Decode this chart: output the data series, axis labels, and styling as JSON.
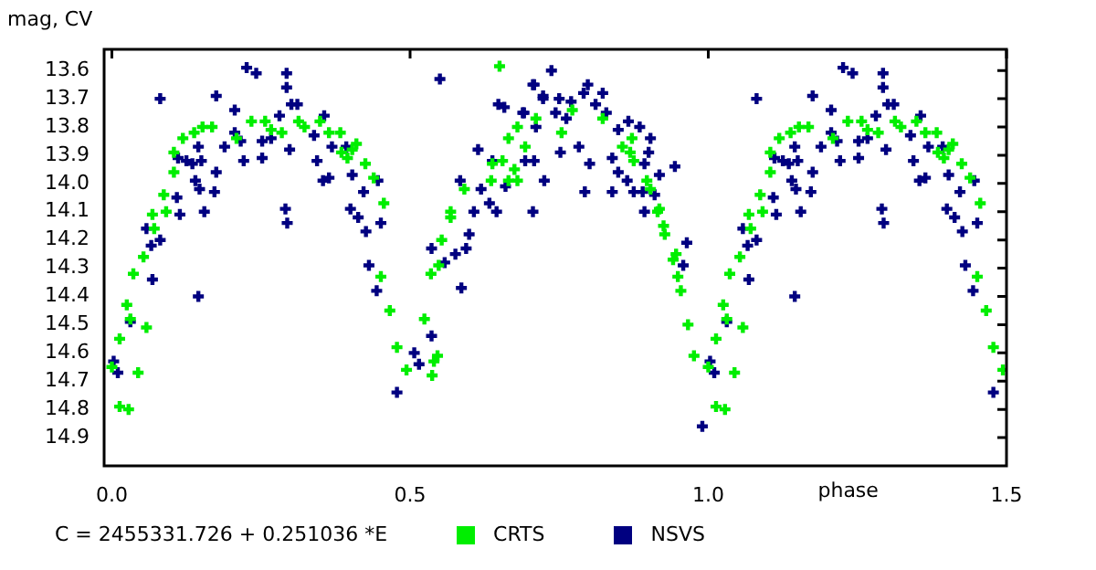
{
  "chart_data": {
    "type": "scatter",
    "xlabel": "phase",
    "ylabel": "mag, CV",
    "annotations": [
      "C = 2455331.726 + 0.251036 *E"
    ],
    "xlim": [
      -0.013,
      1.5
    ],
    "xticks": [
      {
        "value": 0,
        "label": "0.0"
      },
      0.5,
      {
        "value": 1,
        "label": "1.0"
      },
      1.5
    ],
    "ylim": [
      15.0,
      13.525
    ],
    "yticks": [
      13.6,
      13.7,
      13.8,
      13.9,
      {
        "value": 14,
        "label": "14.0"
      },
      14.1,
      14.2,
      14.3,
      14.4,
      14.5,
      14.6,
      14.7,
      14.8,
      14.9
    ],
    "grid": false,
    "legend": "bottom",
    "marker": "cross",
    "series": [
      {
        "name": "CRTS",
        "color": "#00ee00",
        "x": [
          0.0,
          0.013,
          0.013,
          0.025,
          0.028,
          0.031,
          0.036,
          0.044,
          0.053,
          0.058,
          0.068,
          0.071,
          0.087,
          0.091,
          0.104,
          0.104,
          0.119,
          0.138,
          0.152,
          0.168,
          0.209,
          0.234,
          0.257,
          0.267,
          0.285,
          0.313,
          0.323,
          0.349,
          0.364,
          0.383,
          0.385,
          0.395,
          0.403,
          0.41,
          0.425,
          0.439,
          0.451,
          0.456,
          0.466,
          0.478,
          0.494,
          1.0,
          1.013,
          1.013,
          1.025,
          1.028,
          1.031,
          1.036,
          1.044,
          1.053,
          1.058,
          1.068,
          1.071,
          1.087,
          1.091,
          1.104,
          1.104,
          1.119,
          1.138,
          1.152,
          1.168,
          1.209,
          1.234,
          1.257,
          1.267,
          1.285,
          1.313,
          1.323,
          1.349,
          1.364,
          1.383,
          1.385,
          1.395,
          1.403,
          1.41,
          1.425,
          1.439,
          1.451,
          1.456,
          1.466,
          1.478,
          1.494,
          0.524,
          0.535,
          0.537,
          0.54,
          0.546,
          0.548,
          0.553,
          0.568,
          0.568,
          0.591,
          0.636,
          0.638,
          0.65,
          0.655,
          0.665,
          0.665,
          0.675,
          0.68,
          0.68,
          0.693,
          0.711,
          0.754,
          0.772,
          0.823,
          0.856,
          0.869,
          0.872,
          0.875,
          0.897,
          0.903,
          0.915,
          0.918,
          0.925,
          0.927,
          0.941,
          0.946,
          0.949,
          0.954,
          0.966,
          0.976
        ],
        "values": [
          14.65,
          14.55,
          14.79,
          14.43,
          14.8,
          14.48,
          14.32,
          14.67,
          14.26,
          14.51,
          14.11,
          14.16,
          14.04,
          14.1,
          13.96,
          13.89,
          13.84,
          13.82,
          13.8,
          13.8,
          13.84,
          13.78,
          13.78,
          13.81,
          13.82,
          13.78,
          13.8,
          13.78,
          13.82,
          13.82,
          13.89,
          13.91,
          13.88,
          13.86,
          13.93,
          13.98,
          14.33,
          14.07,
          14.45,
          14.58,
          14.66,
          14.65,
          14.55,
          14.79,
          14.43,
          14.8,
          14.48,
          14.32,
          14.67,
          14.26,
          14.51,
          14.11,
          14.16,
          14.04,
          14.1,
          13.96,
          13.89,
          13.84,
          13.82,
          13.8,
          13.8,
          13.84,
          13.78,
          13.78,
          13.81,
          13.82,
          13.78,
          13.8,
          13.78,
          13.82,
          13.82,
          13.89,
          13.91,
          13.88,
          13.86,
          13.93,
          13.98,
          14.33,
          14.07,
          14.45,
          14.58,
          14.66,
          14.48,
          14.32,
          14.68,
          14.63,
          14.61,
          14.29,
          14.2,
          14.1,
          14.12,
          14.02,
          13.99,
          13.93,
          13.585,
          13.92,
          13.84,
          13.99,
          13.95,
          13.8,
          13.99,
          13.87,
          13.77,
          13.82,
          13.74,
          13.77,
          13.87,
          13.89,
          13.84,
          13.92,
          13.99,
          14.02,
          14.1,
          14.09,
          14.15,
          14.18,
          14.27,
          14.25,
          14.33,
          14.38,
          14.5,
          14.61
        ]
      },
      {
        "name": "NSVS",
        "color": "#000080",
        "x": [
          0.003,
          0.01,
          0.031,
          0.058,
          0.066,
          0.068,
          0.081,
          0.081,
          0.109,
          0.111,
          0.114,
          0.125,
          0.135,
          0.14,
          0.145,
          0.145,
          0.147,
          0.15,
          0.155,
          0.172,
          0.175,
          0.175,
          0.189,
          0.206,
          0.206,
          0.216,
          0.221,
          0.226,
          0.242,
          0.252,
          0.252,
          0.267,
          0.281,
          0.291,
          0.293,
          0.293,
          0.294,
          0.298,
          0.301,
          0.311,
          0.339,
          0.344,
          0.354,
          0.356,
          0.364,
          0.369,
          0.393,
          0.4,
          0.403,
          0.413,
          0.422,
          0.426,
          0.431,
          0.444,
          0.446,
          0.451,
          0.478,
          1.003,
          1.01,
          1.031,
          1.058,
          1.066,
          1.068,
          1.081,
          1.081,
          1.109,
          1.111,
          1.114,
          1.125,
          1.135,
          1.14,
          1.145,
          1.145,
          1.147,
          1.15,
          1.155,
          1.172,
          1.175,
          1.175,
          1.189,
          1.206,
          1.206,
          1.216,
          1.221,
          1.226,
          1.242,
          1.252,
          1.252,
          1.267,
          1.281,
          1.291,
          1.293,
          1.293,
          1.294,
          1.298,
          1.301,
          1.311,
          1.339,
          1.344,
          1.354,
          1.356,
          1.364,
          1.369,
          1.393,
          1.4,
          1.403,
          1.413,
          1.422,
          1.426,
          1.431,
          1.444,
          1.446,
          1.451,
          1.478,
          0.507,
          0.515,
          0.536,
          0.536,
          0.55,
          0.558,
          0.576,
          0.584,
          0.586,
          0.594,
          0.599,
          0.607,
          0.614,
          0.619,
          0.633,
          0.638,
          0.645,
          0.648,
          0.658,
          0.66,
          0.689,
          0.691,
          0.693,
          0.706,
          0.706,
          0.708,
          0.708,
          0.711,
          0.723,
          0.723,
          0.725,
          0.737,
          0.744,
          0.75,
          0.752,
          0.762,
          0.77,
          0.783,
          0.791,
          0.793,
          0.798,
          0.801,
          0.811,
          0.823,
          0.829,
          0.839,
          0.839,
          0.849,
          0.849,
          0.864,
          0.866,
          0.875,
          0.885,
          0.89,
          0.893,
          0.893,
          0.9,
          0.903,
          0.91,
          0.918,
          0.944,
          0.958,
          0.964,
          0.99
        ],
        "values": [
          14.63,
          14.67,
          14.49,
          14.16,
          14.22,
          14.34,
          14.2,
          13.7,
          14.05,
          13.91,
          14.11,
          13.92,
          13.93,
          13.99,
          13.87,
          14.4,
          14.02,
          13.92,
          14.1,
          14.03,
          13.96,
          13.69,
          13.87,
          13.74,
          13.82,
          13.85,
          13.92,
          13.59,
          13.61,
          13.85,
          13.91,
          13.84,
          13.76,
          14.09,
          13.61,
          13.66,
          14.14,
          13.88,
          13.72,
          13.72,
          13.83,
          13.92,
          13.99,
          13.76,
          13.98,
          13.87,
          13.87,
          14.09,
          13.97,
          14.12,
          14.03,
          14.17,
          14.29,
          14.38,
          13.99,
          14.14,
          14.74,
          14.63,
          14.67,
          14.49,
          14.16,
          14.22,
          14.34,
          14.2,
          13.7,
          14.05,
          13.91,
          14.11,
          13.92,
          13.93,
          13.99,
          13.87,
          14.4,
          14.02,
          13.92,
          14.1,
          14.03,
          13.96,
          13.69,
          13.87,
          13.74,
          13.82,
          13.85,
          13.92,
          13.59,
          13.61,
          13.85,
          13.91,
          13.84,
          13.76,
          14.09,
          13.61,
          13.66,
          14.14,
          13.88,
          13.72,
          13.72,
          13.83,
          13.92,
          13.99,
          13.76,
          13.98,
          13.87,
          13.87,
          14.09,
          13.97,
          14.12,
          14.03,
          14.17,
          14.29,
          14.38,
          13.99,
          14.14,
          14.74,
          14.6,
          14.64,
          14.54,
          14.23,
          13.63,
          14.28,
          14.25,
          13.99,
          14.37,
          14.23,
          14.18,
          14.1,
          13.88,
          14.02,
          14.07,
          13.92,
          14.1,
          13.72,
          13.73,
          14.01,
          13.75,
          13.75,
          13.92,
          14.1,
          13.65,
          13.65,
          13.92,
          13.8,
          13.7,
          13.69,
          13.99,
          13.6,
          13.75,
          13.7,
          13.89,
          13.77,
          13.71,
          13.87,
          13.68,
          14.03,
          13.65,
          13.93,
          13.72,
          13.68,
          13.75,
          13.91,
          14.03,
          13.96,
          13.81,
          13.99,
          13.78,
          14.03,
          13.8,
          14.03,
          13.93,
          14.1,
          13.89,
          13.84,
          14.04,
          13.97,
          13.94,
          14.29,
          14.21,
          14.86
        ]
      }
    ]
  }
}
